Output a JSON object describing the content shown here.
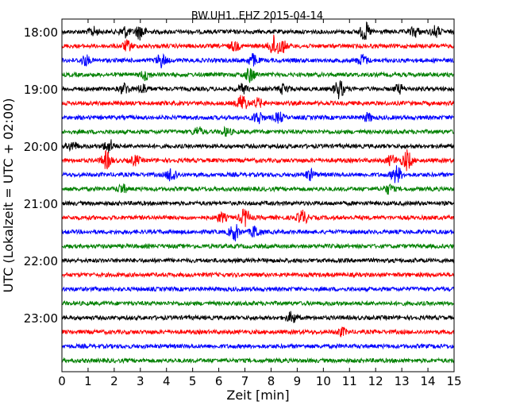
{
  "chart_data": {
    "type": "line",
    "title": "BW.UH1..EHZ 2015-04-14",
    "xlabel": "Zeit  [min]",
    "ylabel": "UTC (Lokalzeit = UTC + 02:00)",
    "xlim": [
      0,
      15
    ],
    "x_ticks": [
      "0",
      "1",
      "2",
      "3",
      "4",
      "5",
      "6",
      "7",
      "8",
      "9",
      "10",
      "11",
      "12",
      "13",
      "14",
      "15"
    ],
    "y_tick_labels": [
      "18:00",
      "19:00",
      "20:00",
      "21:00",
      "22:00",
      "23:00"
    ],
    "trace_colors": [
      "#000000",
      "#ff0000",
      "#0000ff",
      "#008000"
    ],
    "rows": [
      {
        "start": "18:00",
        "color": "#000000",
        "events": [
          [
            1.2,
            0.8
          ],
          [
            2.4,
            1.0
          ],
          [
            3.0,
            1.4
          ],
          [
            11.6,
            1.6
          ],
          [
            13.5,
            0.9
          ],
          [
            14.3,
            1.0
          ]
        ]
      },
      {
        "start": "18:15",
        "color": "#ff0000",
        "events": [
          [
            2.5,
            0.9
          ],
          [
            6.6,
            0.8
          ],
          [
            8.1,
            1.8
          ],
          [
            8.4,
            1.2
          ]
        ]
      },
      {
        "start": "18:30",
        "color": "#0000ff",
        "events": [
          [
            0.9,
            0.9
          ],
          [
            3.8,
            1.2
          ],
          [
            7.3,
            1.1
          ],
          [
            11.5,
            1.0
          ]
        ]
      },
      {
        "start": "18:45",
        "color": "#008000",
        "events": [
          [
            3.2,
            0.9
          ],
          [
            7.2,
            1.3
          ]
        ]
      },
      {
        "start": "19:00",
        "color": "#000000",
        "events": [
          [
            2.4,
            1.0
          ],
          [
            3.1,
            0.9
          ],
          [
            6.9,
            0.8
          ],
          [
            8.5,
            0.9
          ],
          [
            10.6,
            1.7
          ],
          [
            12.9,
            0.8
          ]
        ]
      },
      {
        "start": "19:15",
        "color": "#ff0000",
        "events": [
          [
            6.9,
            1.6
          ],
          [
            7.5,
            0.8
          ]
        ]
      },
      {
        "start": "19:30",
        "color": "#0000ff",
        "events": [
          [
            7.5,
            1.2
          ],
          [
            8.3,
            0.9
          ],
          [
            11.7,
            0.7
          ]
        ]
      },
      {
        "start": "19:45",
        "color": "#008000",
        "events": [
          [
            5.2,
            0.8
          ],
          [
            6.3,
            0.7
          ]
        ]
      },
      {
        "start": "20:00",
        "color": "#000000",
        "events": [
          [
            0.4,
            0.8
          ],
          [
            1.8,
            1.2
          ]
        ]
      },
      {
        "start": "20:15",
        "color": "#ff0000",
        "events": [
          [
            1.7,
            1.6
          ],
          [
            2.8,
            0.8
          ],
          [
            12.6,
            0.9
          ],
          [
            13.2,
            1.8
          ]
        ]
      },
      {
        "start": "20:30",
        "color": "#0000ff",
        "events": [
          [
            4.2,
            1.4
          ],
          [
            9.5,
            0.9
          ],
          [
            12.8,
            1.6
          ]
        ]
      },
      {
        "start": "20:45",
        "color": "#008000",
        "events": [
          [
            2.3,
            0.8
          ],
          [
            12.5,
            0.8
          ]
        ]
      },
      {
        "start": "21:00",
        "color": "#000000",
        "events": []
      },
      {
        "start": "21:15",
        "color": "#ff0000",
        "events": [
          [
            6.1,
            0.8
          ],
          [
            7.0,
            1.6
          ],
          [
            9.2,
            1.3
          ]
        ]
      },
      {
        "start": "21:30",
        "color": "#0000ff",
        "events": [
          [
            6.6,
            1.5
          ],
          [
            7.4,
            1.1
          ]
        ]
      },
      {
        "start": "21:45",
        "color": "#008000",
        "events": []
      },
      {
        "start": "22:00",
        "color": "#000000",
        "events": []
      },
      {
        "start": "22:15",
        "color": "#ff0000",
        "events": []
      },
      {
        "start": "22:30",
        "color": "#0000ff",
        "events": []
      },
      {
        "start": "22:45",
        "color": "#008000",
        "events": []
      },
      {
        "start": "23:00",
        "color": "#000000",
        "events": [
          [
            8.8,
            1.0
          ]
        ]
      },
      {
        "start": "23:15",
        "color": "#ff0000",
        "events": [
          [
            10.7,
            0.7
          ]
        ]
      },
      {
        "start": "23:30",
        "color": "#0000ff",
        "events": []
      },
      {
        "start": "23:45",
        "color": "#008000",
        "events": []
      }
    ]
  }
}
